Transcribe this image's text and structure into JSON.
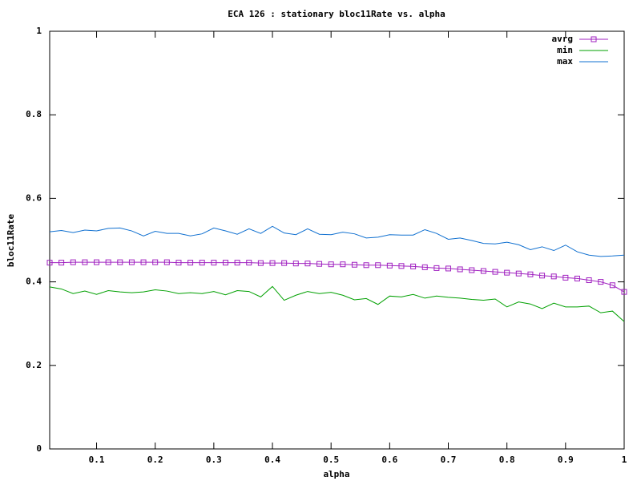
{
  "chart_data": {
    "type": "line",
    "title": "ECA 126 : stationary bloc11Rate vs. alpha",
    "xlabel": "alpha",
    "ylabel": "bloc11Rate",
    "x": [
      0.02,
      0.04,
      0.06,
      0.08,
      0.1,
      0.12,
      0.14,
      0.16,
      0.18,
      0.2,
      0.22,
      0.24,
      0.26,
      0.28,
      0.3,
      0.32,
      0.34,
      0.36,
      0.38,
      0.4,
      0.42,
      0.44,
      0.46,
      0.48,
      0.5,
      0.52,
      0.54,
      0.56,
      0.58,
      0.6,
      0.62,
      0.64,
      0.66,
      0.68,
      0.7,
      0.72,
      0.74,
      0.76,
      0.78,
      0.8,
      0.82,
      0.84,
      0.86,
      0.88,
      0.9,
      0.92,
      0.94,
      0.96,
      0.98,
      1
    ],
    "series": [
      {
        "name": "avrg",
        "color": "#a020c0",
        "markers": true,
        "values": [
          0.446,
          0.446,
          0.447,
          0.447,
          0.447,
          0.447,
          0.447,
          0.447,
          0.447,
          0.447,
          0.447,
          0.446,
          0.446,
          0.446,
          0.446,
          0.446,
          0.446,
          0.446,
          0.445,
          0.445,
          0.445,
          0.444,
          0.444,
          0.443,
          0.442,
          0.442,
          0.441,
          0.44,
          0.44,
          0.439,
          0.438,
          0.437,
          0.435,
          0.433,
          0.432,
          0.43,
          0.428,
          0.426,
          0.424,
          0.422,
          0.42,
          0.418,
          0.415,
          0.413,
          0.41,
          0.408,
          0.404,
          0.4,
          0.392,
          0.376
        ]
      },
      {
        "name": "min",
        "color": "#00a000",
        "markers": false,
        "values": [
          0.388,
          0.383,
          0.372,
          0.378,
          0.37,
          0.379,
          0.376,
          0.374,
          0.376,
          0.381,
          0.378,
          0.372,
          0.374,
          0.372,
          0.377,
          0.369,
          0.379,
          0.377,
          0.364,
          0.389,
          0.356,
          0.368,
          0.377,
          0.372,
          0.375,
          0.368,
          0.357,
          0.36,
          0.346,
          0.366,
          0.364,
          0.37,
          0.361,
          0.366,
          0.363,
          0.361,
          0.358,
          0.356,
          0.359,
          0.34,
          0.352,
          0.347,
          0.336,
          0.349,
          0.34,
          0.34,
          0.342,
          0.326,
          0.33,
          0.305
        ]
      },
      {
        "name": "max",
        "color": "#1070d0",
        "markers": false,
        "values": [
          0.52,
          0.523,
          0.518,
          0.524,
          0.522,
          0.528,
          0.529,
          0.522,
          0.51,
          0.521,
          0.516,
          0.516,
          0.51,
          0.515,
          0.529,
          0.522,
          0.514,
          0.527,
          0.516,
          0.533,
          0.517,
          0.513,
          0.527,
          0.514,
          0.513,
          0.519,
          0.515,
          0.505,
          0.507,
          0.513,
          0.512,
          0.512,
          0.525,
          0.516,
          0.502,
          0.505,
          0.499,
          0.492,
          0.491,
          0.495,
          0.489,
          0.477,
          0.484,
          0.475,
          0.488,
          0.472,
          0.464,
          0.461,
          0.462,
          0.464
        ]
      }
    ],
    "xlim": [
      0.02,
      1
    ],
    "xticks": [
      0.1,
      0.2,
      0.3,
      0.4,
      0.5,
      0.6,
      0.7,
      0.8,
      0.9,
      1
    ],
    "ylim": [
      0,
      1
    ],
    "yticks": [
      0,
      0.2,
      0.4,
      0.6,
      0.8,
      1
    ],
    "grid": false,
    "legend": "top-right"
  }
}
